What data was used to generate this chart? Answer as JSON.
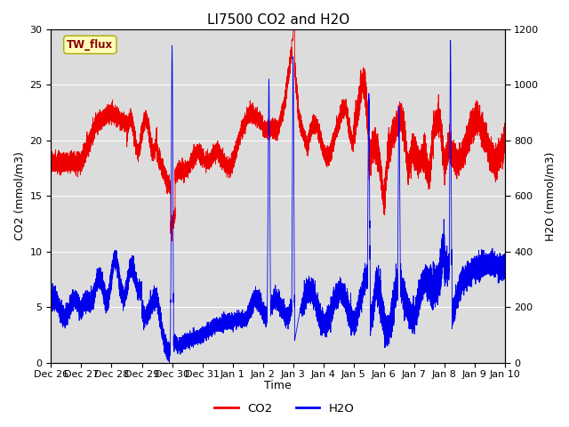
{
  "title": "LI7500 CO2 and H2O",
  "xlabel": "Time",
  "ylabel_left": "CO2 (mmol/m3)",
  "ylabel_right": "H2O (mmol/m3)",
  "annotation": "TW_flux",
  "ylim_left": [
    0,
    30
  ],
  "ylim_right": [
    0,
    1200
  ],
  "co2_color": "#ee0000",
  "h2o_color": "#0000ee",
  "bg_color": "#dcdcdc",
  "fig_bg": "#ffffff",
  "xtick_labels": [
    "Dec 26",
    "Dec 27",
    "Dec 28",
    "Dec 29",
    "Dec 30",
    "Dec 31",
    "Jan 1",
    "Jan 2",
    "Jan 3",
    "Jan 4",
    "Jan 5",
    "Jan 6",
    "Jan 7",
    "Jan 8",
    "Jan 9",
    "Jan 10"
  ],
  "title_fontsize": 11,
  "axis_fontsize": 9,
  "tick_fontsize": 8
}
